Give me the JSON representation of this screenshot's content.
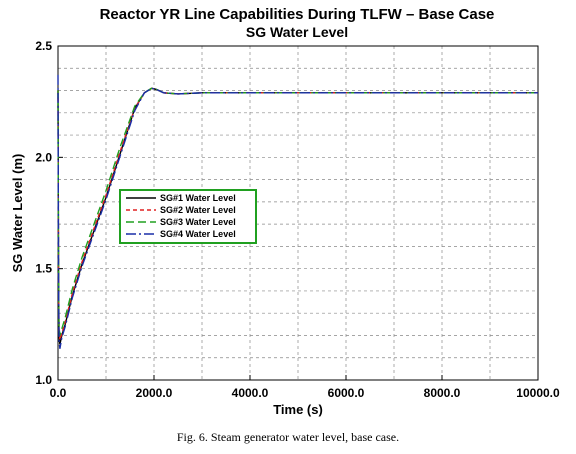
{
  "caption": "Fig. 6.  Steam generator water level, base case.",
  "chart_data": {
    "type": "line",
    "title": "Reactor YR Line Capabilities During TLFW – Base Case",
    "subtitle": "SG Water Level",
    "xlabel": "Time (s)",
    "ylabel": "SG Water Level (m)",
    "xlim": [
      0,
      10000
    ],
    "ylim": [
      1.0,
      2.5
    ],
    "x_ticks": [
      0,
      2000,
      4000,
      6000,
      8000,
      10000
    ],
    "x_tick_labels": [
      "0.0",
      "2000.0",
      "4000.0",
      "6000.0",
      "8000.0",
      "10000.0"
    ],
    "y_ticks": [
      1.0,
      1.5,
      2.0,
      2.5
    ],
    "y_tick_labels": [
      "1.0",
      "1.5",
      "2.0",
      "2.5"
    ],
    "grid": true,
    "legend_position": "center-left",
    "series": [
      {
        "name": "SG#1 Water Level",
        "color": "#000000",
        "dash": "solid",
        "x": [
          0,
          10,
          20,
          40,
          80,
          150,
          300,
          500,
          800,
          1000,
          1300,
          1600,
          1800,
          1950,
          2050,
          2200,
          2500,
          3000,
          5000,
          7000,
          10000
        ],
        "y": [
          2.3,
          1.5,
          1.2,
          1.16,
          1.2,
          1.25,
          1.38,
          1.52,
          1.7,
          1.82,
          2.02,
          2.22,
          2.29,
          2.31,
          2.305,
          2.29,
          2.285,
          2.29,
          2.29,
          2.29,
          2.29
        ]
      },
      {
        "name": "SG#2 Water Level",
        "color": "#e02020",
        "dash": "4,3",
        "x": [
          0,
          10,
          20,
          40,
          80,
          150,
          300,
          500,
          800,
          1000,
          1300,
          1600,
          1800,
          1950,
          2050,
          2200,
          2500,
          3000,
          5000,
          7000,
          10000
        ],
        "y": [
          2.3,
          1.52,
          1.22,
          1.18,
          1.21,
          1.26,
          1.39,
          1.53,
          1.71,
          1.83,
          2.03,
          2.22,
          2.29,
          2.31,
          2.305,
          2.29,
          2.285,
          2.29,
          2.29,
          2.29,
          2.29
        ]
      },
      {
        "name": "SG#3 Water Level",
        "color": "#20a020",
        "dash": "8,4",
        "x": [
          0,
          10,
          20,
          40,
          80,
          150,
          300,
          500,
          800,
          1000,
          1300,
          1600,
          1800,
          1950,
          2050,
          2200,
          2500,
          3000,
          5000,
          7000,
          10000
        ],
        "y": [
          2.3,
          1.55,
          1.24,
          1.2,
          1.23,
          1.28,
          1.41,
          1.55,
          1.73,
          1.85,
          2.05,
          2.23,
          2.29,
          2.31,
          2.305,
          2.29,
          2.285,
          2.29,
          2.29,
          2.29,
          2.29
        ]
      },
      {
        "name": "SG#4 Water Level",
        "color": "#1a2ea8",
        "dash": "10,3,2,3",
        "x": [
          0,
          10,
          20,
          40,
          80,
          150,
          300,
          500,
          800,
          1000,
          1300,
          1600,
          1800,
          1950,
          2050,
          2200,
          2500,
          3000,
          5000,
          7000,
          10000
        ],
        "y": [
          2.37,
          1.48,
          1.18,
          1.14,
          1.19,
          1.24,
          1.37,
          1.51,
          1.69,
          1.81,
          2.01,
          2.21,
          2.29,
          2.31,
          2.305,
          2.29,
          2.285,
          2.29,
          2.29,
          2.29,
          2.29
        ]
      }
    ]
  }
}
